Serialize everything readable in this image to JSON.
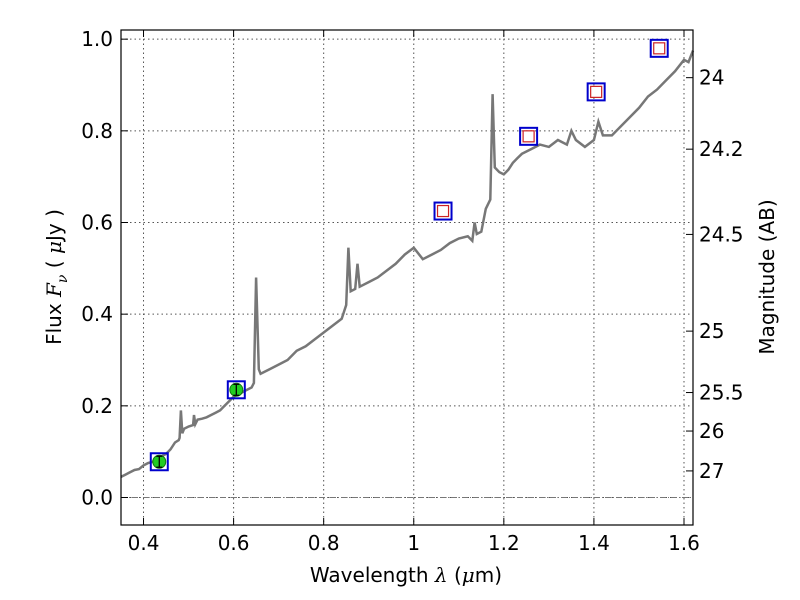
{
  "chart_data": {
    "type": "line",
    "xlabel": {
      "prefix": "Wavelength ",
      "symbol": "λ",
      "unit_open": " (",
      "unit_symbol": "μ",
      "unit_rest": "m)"
    },
    "ylabel": {
      "prefix": "Flux ",
      "symbol": "F",
      "subscript": "ν",
      "unit_open": " ( ",
      "unit_symbol": "μ",
      "unit_rest": "Jy )"
    },
    "ylabel_right": "Magnitude (AB)",
    "xlim": [
      0.35,
      1.62
    ],
    "ylim": [
      -0.06,
      1.02
    ],
    "grid": true,
    "x_ticks": [
      {
        "value": 0.4,
        "label": "0.4"
      },
      {
        "value": 0.6,
        "label": "0.6"
      },
      {
        "value": 0.8,
        "label": "0.8"
      },
      {
        "value": 1.0,
        "label": "1"
      },
      {
        "value": 1.2,
        "label": "1.2"
      },
      {
        "value": 1.4,
        "label": "1.4"
      },
      {
        "value": 1.6,
        "label": "1.6"
      }
    ],
    "y_ticks": [
      {
        "value": 0.0,
        "label": "0.0"
      },
      {
        "value": 0.2,
        "label": "0.2"
      },
      {
        "value": 0.4,
        "label": "0.4"
      },
      {
        "value": 0.6,
        "label": "0.6"
      },
      {
        "value": 0.8,
        "label": "0.8"
      },
      {
        "value": 1.0,
        "label": "1.0"
      }
    ],
    "mag_ticks": [
      {
        "flux": 0.916,
        "label": "24"
      },
      {
        "flux": 0.76,
        "label": "24.2"
      },
      {
        "flux": 0.574,
        "label": "24.5"
      },
      {
        "flux": 0.363,
        "label": "25"
      },
      {
        "flux": 0.229,
        "label": "25.5"
      },
      {
        "flux": 0.145,
        "label": "26"
      },
      {
        "flux": 0.058,
        "label": "27"
      }
    ],
    "zero_line": 0.0,
    "spectrum": {
      "color": "#777777",
      "points": [
        [
          0.35,
          0.045
        ],
        [
          0.36,
          0.05
        ],
        [
          0.37,
          0.055
        ],
        [
          0.38,
          0.06
        ],
        [
          0.39,
          0.062
        ],
        [
          0.4,
          0.07
        ],
        [
          0.41,
          0.075
        ],
        [
          0.42,
          0.078
        ],
        [
          0.43,
          0.082
        ],
        [
          0.44,
          0.09
        ],
        [
          0.45,
          0.095
        ],
        [
          0.46,
          0.105
        ],
        [
          0.47,
          0.12
        ],
        [
          0.478,
          0.125
        ],
        [
          0.48,
          0.13
        ],
        [
          0.483,
          0.19
        ],
        [
          0.486,
          0.14
        ],
        [
          0.49,
          0.15
        ],
        [
          0.5,
          0.155
        ],
        [
          0.51,
          0.158
        ],
        [
          0.512,
          0.18
        ],
        [
          0.515,
          0.16
        ],
        [
          0.52,
          0.17
        ],
        [
          0.53,
          0.172
        ],
        [
          0.54,
          0.175
        ],
        [
          0.55,
          0.18
        ],
        [
          0.56,
          0.185
        ],
        [
          0.57,
          0.19
        ],
        [
          0.58,
          0.2
        ],
        [
          0.59,
          0.21
        ],
        [
          0.6,
          0.22
        ],
        [
          0.61,
          0.225
        ],
        [
          0.62,
          0.23
        ],
        [
          0.63,
          0.235
        ],
        [
          0.64,
          0.24
        ],
        [
          0.645,
          0.25
        ],
        [
          0.65,
          0.48
        ],
        [
          0.656,
          0.28
        ],
        [
          0.66,
          0.27
        ],
        [
          0.67,
          0.275
        ],
        [
          0.68,
          0.28
        ],
        [
          0.7,
          0.29
        ],
        [
          0.72,
          0.3
        ],
        [
          0.74,
          0.32
        ],
        [
          0.76,
          0.33
        ],
        [
          0.78,
          0.345
        ],
        [
          0.8,
          0.36
        ],
        [
          0.82,
          0.375
        ],
        [
          0.84,
          0.39
        ],
        [
          0.85,
          0.42
        ],
        [
          0.855,
          0.545
        ],
        [
          0.86,
          0.45
        ],
        [
          0.87,
          0.455
        ],
        [
          0.875,
          0.51
        ],
        [
          0.88,
          0.46
        ],
        [
          0.9,
          0.47
        ],
        [
          0.92,
          0.48
        ],
        [
          0.94,
          0.495
        ],
        [
          0.96,
          0.51
        ],
        [
          0.98,
          0.53
        ],
        [
          1.0,
          0.545
        ],
        [
          1.02,
          0.52
        ],
        [
          1.04,
          0.53
        ],
        [
          1.06,
          0.54
        ],
        [
          1.08,
          0.555
        ],
        [
          1.1,
          0.565
        ],
        [
          1.12,
          0.57
        ],
        [
          1.13,
          0.56
        ],
        [
          1.135,
          0.6
        ],
        [
          1.14,
          0.575
        ],
        [
          1.15,
          0.58
        ],
        [
          1.16,
          0.63
        ],
        [
          1.17,
          0.65
        ],
        [
          1.175,
          0.88
        ],
        [
          1.18,
          0.72
        ],
        [
          1.19,
          0.71
        ],
        [
          1.2,
          0.705
        ],
        [
          1.21,
          0.715
        ],
        [
          1.22,
          0.73
        ],
        [
          1.23,
          0.74
        ],
        [
          1.24,
          0.75
        ],
        [
          1.26,
          0.76
        ],
        [
          1.28,
          0.77
        ],
        [
          1.3,
          0.765
        ],
        [
          1.32,
          0.78
        ],
        [
          1.34,
          0.77
        ],
        [
          1.35,
          0.8
        ],
        [
          1.36,
          0.78
        ],
        [
          1.38,
          0.765
        ],
        [
          1.4,
          0.78
        ],
        [
          1.41,
          0.82
        ],
        [
          1.42,
          0.79
        ],
        [
          1.44,
          0.79
        ],
        [
          1.46,
          0.81
        ],
        [
          1.48,
          0.83
        ],
        [
          1.5,
          0.85
        ],
        [
          1.52,
          0.875
        ],
        [
          1.54,
          0.89
        ],
        [
          1.56,
          0.91
        ],
        [
          1.58,
          0.93
        ],
        [
          1.6,
          0.955
        ],
        [
          1.61,
          0.95
        ],
        [
          1.62,
          0.975
        ]
      ]
    },
    "photometry_measured": [
      {
        "x": 0.435,
        "y": 0.078,
        "yerr": 0.012
      },
      {
        "x": 0.606,
        "y": 0.235,
        "yerr": 0.012
      }
    ],
    "photometry_limits": [
      {
        "x": 1.065,
        "y": 0.625
      },
      {
        "x": 1.255,
        "y": 0.788
      },
      {
        "x": 1.405,
        "y": 0.885
      },
      {
        "x": 1.545,
        "y": 0.98
      }
    ],
    "colors": {
      "measured_fill": "#22cc22",
      "box_edge": "#0000cc",
      "limit_edge": "#cc2222",
      "grid": "#555555",
      "zero_line": "#777777"
    }
  }
}
